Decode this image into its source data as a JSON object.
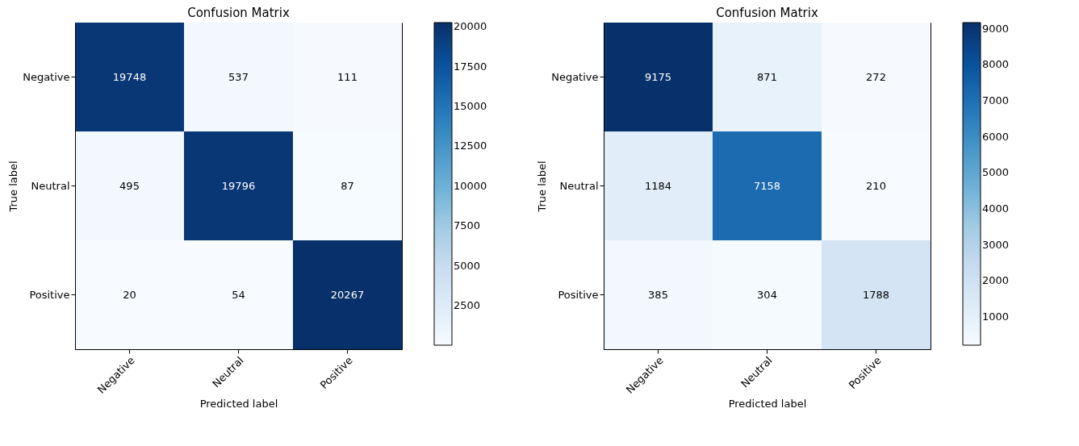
{
  "chart_data": [
    {
      "type": "heatmap",
      "title": "Confusion Matrix",
      "xlabel": "Predicted label",
      "ylabel": "True label",
      "categories": [
        "Negative",
        "Neutral",
        "Positive"
      ],
      "y_categories": [
        "Negative",
        "Neutral",
        "Positive"
      ],
      "cells": [
        [
          19748,
          537,
          111
        ],
        [
          495,
          19796,
          87
        ],
        [
          20,
          54,
          20267
        ]
      ],
      "clim": [
        20,
        20267
      ],
      "cticks": [
        2500,
        5000,
        7500,
        10000,
        12500,
        15000,
        17500,
        20000
      ],
      "data_labels": true
    },
    {
      "type": "heatmap",
      "title": "Confusion Matrix",
      "xlabel": "Predicted label",
      "ylabel": "True label",
      "categories": [
        "Negative",
        "Neutral",
        "Positive"
      ],
      "y_categories": [
        "Negative",
        "Neutral",
        "Positive"
      ],
      "cells": [
        [
          9175,
          871,
          272
        ],
        [
          1184,
          7158,
          210
        ],
        [
          385,
          304,
          1788
        ]
      ],
      "clim": [
        210,
        9175
      ],
      "cticks": [
        1000,
        2000,
        3000,
        4000,
        5000,
        6000,
        7000,
        8000,
        9000
      ],
      "data_labels": true
    }
  ]
}
